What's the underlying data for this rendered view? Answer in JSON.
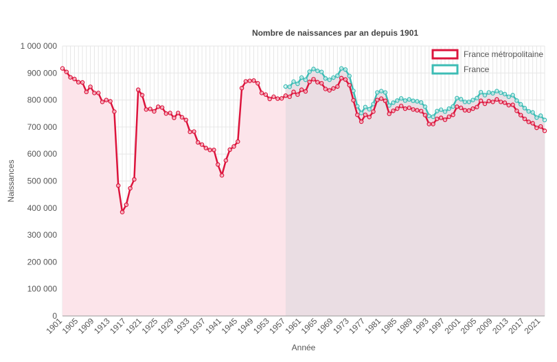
{
  "chart_data": {
    "type": "line",
    "title": "Nombre de naissances par an depuis 1901",
    "xlabel": "Année",
    "ylabel": "Naissances",
    "ylim": [
      0,
      1000000
    ],
    "yticks": [
      "0",
      "100 000",
      "200 000",
      "300 000",
      "400 000",
      "500 000",
      "600 000",
      "700 000",
      "800 000",
      "900 000",
      "1 000 000"
    ],
    "xlim": [
      1901,
      2022
    ],
    "xticks": [
      1901,
      1905,
      1909,
      1913,
      1917,
      1921,
      1925,
      1929,
      1933,
      1937,
      1941,
      1945,
      1949,
      1953,
      1957,
      1961,
      1965,
      1969,
      1973,
      1977,
      1981,
      1985,
      1989,
      1993,
      1997,
      2001,
      2005,
      2009,
      2013,
      2017,
      2021
    ],
    "grid": true,
    "legend": "top-right",
    "colors": {
      "metro": "#dc143c",
      "metro_fill": "#fce4ea",
      "france": "#3dbcb5",
      "overlap_fill": "#e8dce2"
    },
    "series": [
      {
        "name": "France métropolitaine",
        "x": [
          1901,
          1902,
          1903,
          1904,
          1905,
          1906,
          1907,
          1908,
          1909,
          1910,
          1911,
          1912,
          1913,
          1914,
          1915,
          1916,
          1917,
          1918,
          1919,
          1920,
          1921,
          1922,
          1923,
          1924,
          1925,
          1926,
          1927,
          1928,
          1929,
          1930,
          1931,
          1932,
          1933,
          1934,
          1935,
          1936,
          1937,
          1938,
          1939,
          1940,
          1941,
          1942,
          1943,
          1944,
          1945,
          1946,
          1947,
          1948,
          1949,
          1950,
          1951,
          1952,
          1953,
          1954,
          1955,
          1956,
          1957,
          1958,
          1959,
          1960,
          1961,
          1962,
          1963,
          1964,
          1965,
          1966,
          1967,
          1968,
          1969,
          1970,
          1971,
          1972,
          1973,
          1974,
          1975,
          1976,
          1977,
          1978,
          1979,
          1980,
          1981,
          1982,
          1983,
          1984,
          1985,
          1986,
          1987,
          1988,
          1989,
          1990,
          1991,
          1992,
          1993,
          1994,
          1995,
          1996,
          1997,
          1998,
          1999,
          2000,
          2001,
          2002,
          2003,
          2004,
          2005,
          2006,
          2007,
          2008,
          2009,
          2010,
          2011,
          2012,
          2013,
          2014,
          2015,
          2016,
          2017,
          2018,
          2019,
          2020,
          2021,
          2022
        ],
        "values": [
          917000,
          904000,
          884000,
          878000,
          866000,
          865000,
          830000,
          849000,
          826000,
          826000,
          793000,
          800000,
          795000,
          757000,
          483000,
          385000,
          412000,
          473000,
          506000,
          838000,
          818000,
          765000,
          767000,
          758000,
          775000,
          772000,
          750000,
          752000,
          734000,
          752000,
          736000,
          726000,
          682000,
          683000,
          643000,
          635000,
          622000,
          615000,
          615000,
          561000,
          521000,
          576000,
          616000,
          628000,
          646000,
          844000,
          869000,
          871000,
          872000,
          862000,
          826000,
          820000,
          804000,
          812000,
          805000,
          806000,
          816000,
          812000,
          830000,
          820000,
          838000,
          832000,
          867000,
          877000,
          866000,
          862000,
          841000,
          836000,
          843000,
          850000,
          881000,
          876000,
          855000,
          799000,
          745000,
          720000,
          745000,
          737000,
          757000,
          800000,
          805000,
          797000,
          749000,
          760000,
          768000,
          778000,
          768000,
          771000,
          765000,
          762000,
          759000,
          744000,
          711000,
          711000,
          730000,
          734000,
          727000,
          738000,
          745000,
          775000,
          771000,
          762000,
          761000,
          768000,
          774000,
          797000,
          786000,
          796000,
          793000,
          802000,
          793000,
          790000,
          781000,
          782000,
          760000,
          744000,
          730000,
          719000,
          714000,
          697000,
          702000,
          686000
        ]
      },
      {
        "name": "France",
        "x": [
          1957,
          1958,
          1959,
          1960,
          1961,
          1962,
          1963,
          1964,
          1965,
          1966,
          1967,
          1968,
          1969,
          1970,
          1971,
          1972,
          1973,
          1974,
          1975,
          1976,
          1977,
          1978,
          1979,
          1980,
          1981,
          1982,
          1983,
          1984,
          1985,
          1986,
          1987,
          1988,
          1989,
          1990,
          1991,
          1992,
          1993,
          1994,
          1995,
          1996,
          1997,
          1998,
          1999,
          2000,
          2001,
          2002,
          2003,
          2004,
          2005,
          2006,
          2007,
          2008,
          2009,
          2010,
          2011,
          2012,
          2013,
          2014,
          2015,
          2016,
          2017,
          2018,
          2019,
          2020,
          2021,
          2022
        ],
        "values": [
          850000,
          849000,
          868000,
          860000,
          883000,
          875000,
          905000,
          915000,
          908000,
          904000,
          880000,
          875000,
          883000,
          890000,
          917000,
          913000,
          889000,
          834000,
          777000,
          752000,
          774000,
          766000,
          785000,
          828000,
          833000,
          828000,
          780000,
          790000,
          798000,
          806000,
          798000,
          802000,
          797000,
          795000,
          791000,
          775000,
          741000,
          738000,
          759000,
          764000,
          757000,
          768000,
          776000,
          807000,
          803000,
          793000,
          793000,
          800000,
          807000,
          829000,
          818000,
          828000,
          825000,
          833000,
          827000,
          822000,
          812000,
          818000,
          798000,
          784000,
          770000,
          758000,
          754000,
          735000,
          742000,
          726000
        ]
      }
    ]
  }
}
